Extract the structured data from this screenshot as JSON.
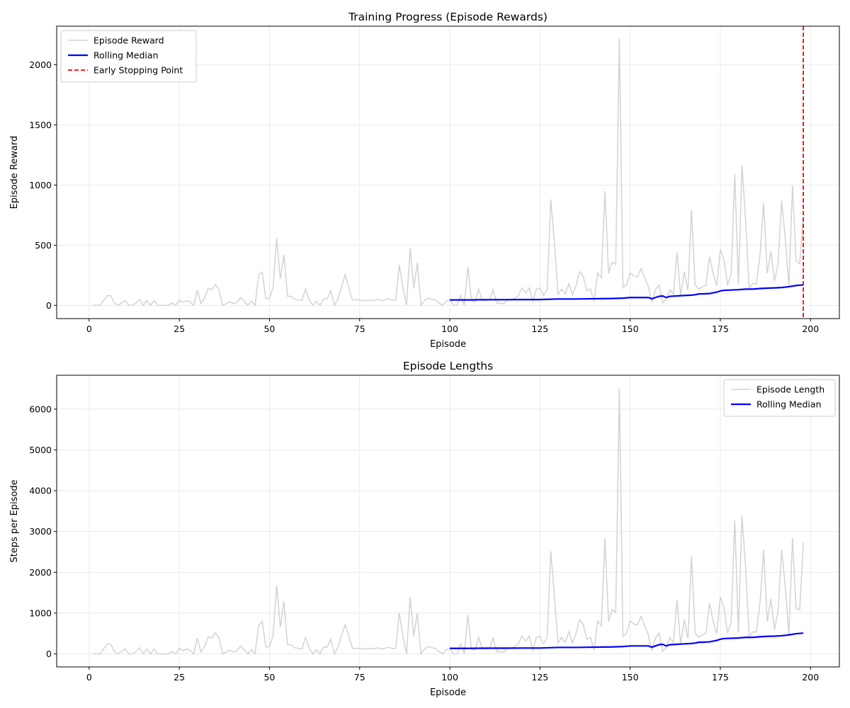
{
  "chart_data": [
    {
      "type": "line",
      "title": "Training Progress (Episode Rewards)",
      "xlabel": "Episode",
      "ylabel": "Episode Reward",
      "xlim": [
        -9,
        208
      ],
      "ylim": [
        -110,
        2320
      ],
      "xticks": [
        0,
        25,
        50,
        75,
        100,
        125,
        150,
        175,
        200
      ],
      "yticks": [
        0,
        500,
        1000,
        1500,
        2000
      ],
      "grid": true,
      "legend": "top-left",
      "colors": {
        "episode": "#d3d3d3",
        "median": "#0000ff",
        "stop": "#ff0000"
      },
      "series": [
        {
          "name": "Episode Reward",
          "x_start": 1,
          "values": [
            0,
            0,
            0,
            40,
            80,
            80,
            20,
            0,
            20,
            40,
            0,
            0,
            20,
            50,
            0,
            40,
            0,
            40,
            0,
            0,
            0,
            0,
            20,
            0,
            45,
            25,
            40,
            30,
            0,
            130,
            15,
            60,
            140,
            130,
            175,
            130,
            0,
            15,
            30,
            15,
            25,
            65,
            35,
            0,
            35,
            0,
            255,
            275,
            55,
            60,
            150,
            560,
            220,
            420,
            75,
            75,
            50,
            45,
            40,
            135,
            45,
            0,
            35,
            0,
            55,
            55,
            120,
            0,
            55,
            155,
            255,
            145,
            45,
            45,
            45,
            40,
            40,
            45,
            40,
            50,
            40,
            45,
            55,
            45,
            45,
            335,
            145,
            0,
            475,
            145,
            355,
            0,
            40,
            60,
            50,
            45,
            20,
            0,
            35,
            45,
            0,
            0,
            85,
            0,
            320,
            40,
            30,
            135,
            40,
            40,
            45,
            130,
            20,
            15,
            15,
            50,
            45,
            60,
            80,
            145,
            105,
            145,
            30,
            135,
            145,
            80,
            135,
            880,
            520,
            90,
            135,
            95,
            180,
            90,
            165,
            280,
            240,
            120,
            135,
            30,
            270,
            230,
            950,
            265,
            360,
            340,
            2220,
            145,
            170,
            270,
            245,
            235,
            305,
            230,
            160,
            25,
            130,
            170,
            20,
            55,
            130,
            95,
            440,
            75,
            280,
            125,
            795,
            170,
            135,
            155,
            165,
            405,
            265,
            165,
            465,
            380,
            170,
            260,
            1090,
            175,
            1160,
            710,
            140,
            180,
            180,
            420,
            850,
            265,
            450,
            200,
            345,
            870,
            555,
            155,
            995,
            370,
            345,
            740
          ]
        },
        {
          "name": "Rolling Median",
          "x": [
            100,
            105,
            110,
            115,
            120,
            125,
            130,
            135,
            140,
            145,
            148,
            150,
            155,
            156,
            157,
            158,
            159,
            160,
            161,
            165,
            167,
            168,
            169,
            170,
            172,
            174,
            175,
            176,
            180,
            182,
            184,
            186,
            188,
            190,
            192,
            194,
            196,
            198
          ],
          "values": [
            45,
            45,
            47,
            47,
            48,
            48,
            53,
            53,
            55,
            57,
            60,
            65,
            65,
            55,
            65,
            75,
            78,
            65,
            75,
            82,
            85,
            88,
            95,
            95,
            98,
            110,
            120,
            125,
            130,
            135,
            135,
            140,
            143,
            145,
            148,
            155,
            165,
            170
          ]
        }
      ],
      "early_stopping": {
        "name": "Early Stopping Point",
        "x": 198
      }
    },
    {
      "type": "line",
      "title": "Episode Lengths",
      "xlabel": "Episode",
      "ylabel": "Steps per Episode",
      "xlim": [
        -9,
        208
      ],
      "ylim": [
        -320,
        6830
      ],
      "xticks": [
        0,
        25,
        50,
        75,
        100,
        125,
        150,
        175,
        200
      ],
      "yticks": [
        0,
        1000,
        2000,
        3000,
        4000,
        5000,
        6000
      ],
      "grid": true,
      "legend": "top-right",
      "colors": {
        "episode": "#d3d3d3",
        "median": "#0000ff"
      },
      "series": [
        {
          "name": "Episode Length",
          "x_start": 1,
          "values": [
            0,
            0,
            0,
            120,
            240,
            240,
            60,
            0,
            60,
            120,
            0,
            0,
            60,
            150,
            0,
            120,
            0,
            120,
            0,
            0,
            0,
            0,
            60,
            0,
            135,
            75,
            120,
            90,
            0,
            390,
            45,
            180,
            420,
            390,
            525,
            390,
            0,
            45,
            90,
            45,
            75,
            195,
            105,
            0,
            105,
            0,
            700,
            800,
            165,
            180,
            450,
            1680,
            660,
            1280,
            225,
            225,
            150,
            135,
            120,
            405,
            135,
            0,
            105,
            0,
            165,
            165,
            360,
            0,
            165,
            465,
            715,
            435,
            135,
            135,
            135,
            120,
            120,
            135,
            120,
            150,
            120,
            135,
            165,
            135,
            135,
            1005,
            435,
            0,
            1385,
            435,
            1000,
            0,
            120,
            180,
            150,
            135,
            60,
            0,
            105,
            135,
            0,
            0,
            255,
            0,
            950,
            120,
            90,
            405,
            120,
            120,
            135,
            390,
            60,
            45,
            45,
            150,
            135,
            180,
            240,
            435,
            315,
            435,
            90,
            405,
            435,
            240,
            405,
            2520,
            1400,
            270,
            405,
            285,
            540,
            270,
            495,
            840,
            720,
            360,
            405,
            90,
            810,
            690,
            2830,
            795,
            1080,
            1020,
            6500,
            435,
            510,
            810,
            735,
            705,
            915,
            690,
            480,
            75,
            390,
            510,
            60,
            165,
            390,
            285,
            1320,
            225,
            840,
            375,
            2400,
            510,
            405,
            465,
            495,
            1245,
            795,
            495,
            1395,
            1140,
            510,
            780,
            3270,
            525,
            3400,
            2130,
            420,
            540,
            540,
            1260,
            2550,
            795,
            1350,
            600,
            1035,
            2550,
            1665,
            465,
            2835,
            1110,
            1080,
            2740
          ]
        },
        {
          "name": "Rolling Median",
          "x": [
            100,
            105,
            110,
            115,
            120,
            125,
            130,
            135,
            140,
            145,
            148,
            150,
            155,
            156,
            157,
            158,
            159,
            160,
            161,
            165,
            167,
            168,
            169,
            170,
            172,
            174,
            175,
            176,
            180,
            182,
            184,
            186,
            188,
            190,
            192,
            194,
            196,
            198
          ],
          "values": [
            135,
            135,
            140,
            140,
            143,
            143,
            158,
            158,
            165,
            170,
            180,
            195,
            195,
            165,
            195,
            225,
            235,
            195,
            225,
            245,
            255,
            265,
            285,
            285,
            295,
            330,
            360,
            375,
            390,
            405,
            405,
            420,
            430,
            435,
            445,
            465,
            495,
            510
          ]
        }
      ]
    }
  ]
}
